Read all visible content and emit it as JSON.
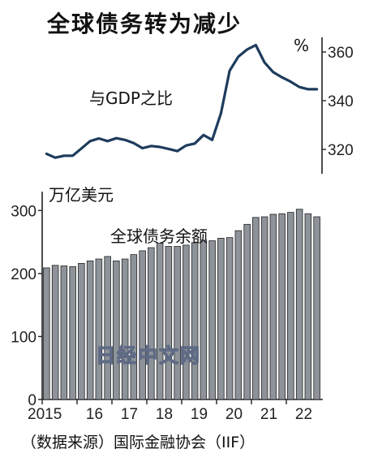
{
  "title": "全球债务转为减少",
  "source": "（数据来源）国际金融协会（IIF）",
  "watermark": "日经中文网",
  "colors": {
    "line": "#1d3b5c",
    "bar_fill": "#8d9399",
    "bar_stroke": "#222222",
    "axis": "#222222"
  },
  "chart_data": [
    {
      "type": "line",
      "label": "与GDP之比",
      "unit": "%",
      "ylim": [
        310,
        366
      ],
      "yticks": [
        320,
        340,
        360
      ],
      "x": [
        "2015Q1",
        "2015Q2",
        "2015Q3",
        "2015Q4",
        "2016Q1",
        "2016Q2",
        "2016Q3",
        "2016Q4",
        "2017Q1",
        "2017Q2",
        "2017Q3",
        "2017Q4",
        "2018Q1",
        "2018Q2",
        "2018Q3",
        "2018Q4",
        "2019Q1",
        "2019Q2",
        "2019Q3",
        "2019Q4",
        "2020Q1",
        "2020Q2",
        "2020Q3",
        "2020Q4",
        "2021Q1",
        "2021Q2",
        "2021Q3",
        "2021Q4",
        "2022Q1",
        "2022Q2",
        "2022Q3",
        "2022Q4"
      ],
      "values": [
        318.2,
        316.6,
        317.4,
        317.4,
        320.4,
        323.4,
        324.5,
        323.4,
        324.6,
        323.9,
        322.6,
        320.5,
        321.4,
        321.0,
        320.2,
        319.3,
        321.6,
        322.4,
        325.9,
        323.9,
        334.8,
        352.3,
        358.1,
        361.0,
        362.8,
        355.7,
        351.7,
        349.6,
        347.8,
        345.6,
        344.7,
        344.7
      ]
    },
    {
      "type": "bar",
      "label": "全球债务余额",
      "ylabel": "万亿美元",
      "ylim": [
        0,
        330
      ],
      "yticks": [
        0,
        100,
        200,
        300
      ],
      "xtick_labels": [
        "2015",
        "16",
        "17",
        "18",
        "19",
        "20",
        "21",
        "22"
      ],
      "x": [
        "2015Q1",
        "2015Q2",
        "2015Q3",
        "2015Q4",
        "2016Q1",
        "2016Q2",
        "2016Q3",
        "2016Q4",
        "2017Q1",
        "2017Q2",
        "2017Q3",
        "2017Q4",
        "2018Q1",
        "2018Q2",
        "2018Q3",
        "2018Q4",
        "2019Q1",
        "2019Q2",
        "2019Q3",
        "2019Q4",
        "2020Q1",
        "2020Q2",
        "2020Q3",
        "2020Q4",
        "2021Q1",
        "2021Q2",
        "2021Q3",
        "2021Q4",
        "2022Q1",
        "2022Q2",
        "2022Q3",
        "2022Q4"
      ],
      "values": [
        209,
        213,
        212,
        211,
        216,
        220,
        223,
        227,
        220,
        223,
        230,
        236,
        241,
        248,
        243,
        243,
        245,
        249,
        253,
        252,
        256,
        257,
        268,
        278,
        289,
        290,
        294,
        295,
        297,
        302,
        295,
        290
      ]
    }
  ]
}
